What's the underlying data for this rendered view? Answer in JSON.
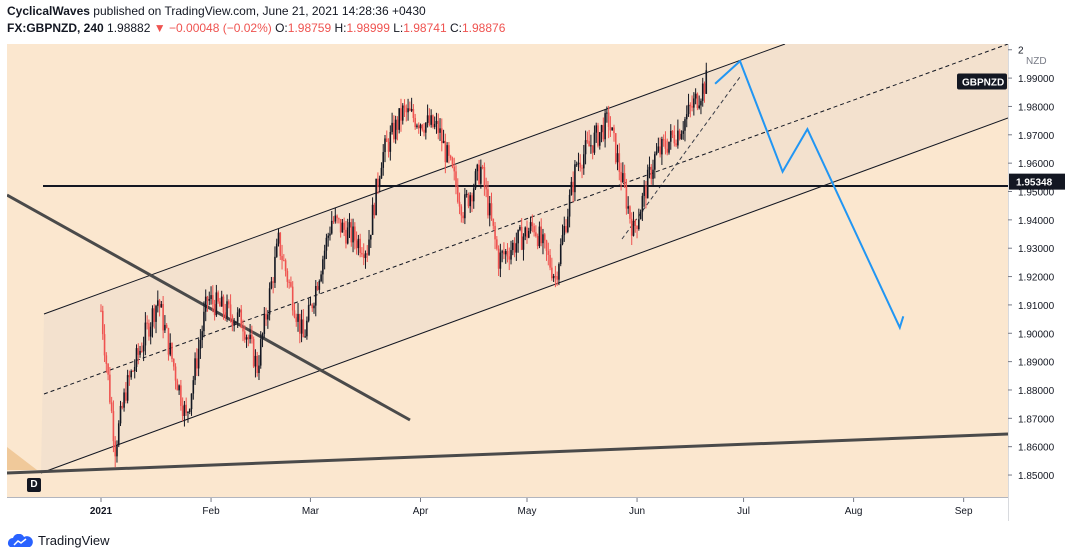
{
  "header": {
    "publisher": "CyclicalWaves",
    "published_text": "published on TradingView.com, June 21, 2021 14:28:36 +0430",
    "symbol": "FX:GBPNZD, 240",
    "last": "1.98882",
    "change_arrow": "▼",
    "change": "−0.00048 (−0.02%)",
    "o_label": "O:",
    "o": "1.98759",
    "h_label": "H:",
    "h": "1.98999",
    "l_label": "L:",
    "l": "1.98741",
    "c_label": "C:",
    "c": "1.98876"
  },
  "footer": {
    "brand": "TradingView"
  },
  "badge_d": "D",
  "colors": {
    "background": "#fbe7cf",
    "channel_fill": "#f2e0cd",
    "up": "#131722",
    "down": "#ef5350",
    "projection": "#2196f3",
    "trendline": "#363a45"
  },
  "chart_data": {
    "type": "candlestick",
    "symbol": "GBPNZD",
    "currency_label": "NZD",
    "ylim": [
      1.845,
      2.0
    ],
    "yticks": [
      "2",
      "1.99000",
      "1.98000",
      "1.97000",
      "1.96000",
      "1.95000",
      "1.94000",
      "1.93000",
      "1.92000",
      "1.91000",
      "1.90000",
      "1.89000",
      "1.88000",
      "1.87000",
      "1.86000",
      "1.85000"
    ],
    "xticks": [
      "2021",
      "Feb",
      "Mar",
      "Apr",
      "May",
      "Jun",
      "Jul",
      "Aug",
      "Sep"
    ],
    "horizontal_level": "1.95348",
    "symbol_tag": "GBPNZD",
    "swing_path": [
      [
        "2021-01-01",
        1.908
      ],
      [
        "2021-01-05",
        1.86
      ],
      [
        "2021-01-08",
        1.88
      ],
      [
        "2021-01-17",
        1.912
      ],
      [
        "2021-01-25",
        1.87
      ],
      [
        "2021-01-31",
        1.912
      ],
      [
        "2021-02-10",
        1.904
      ],
      [
        "2021-02-14",
        1.888
      ],
      [
        "2021-02-20",
        1.932
      ],
      [
        "2021-02-27",
        1.898
      ],
      [
        "2021-03-07",
        1.94
      ],
      [
        "2021-03-17",
        1.93
      ],
      [
        "2021-03-21",
        1.962
      ],
      [
        "2021-03-27",
        1.978
      ],
      [
        "2021-04-06",
        1.972
      ],
      [
        "2021-04-13",
        1.944
      ],
      [
        "2021-04-18",
        1.958
      ],
      [
        "2021-04-23",
        1.926
      ],
      [
        "2021-05-03",
        1.938
      ],
      [
        "2021-05-09",
        1.92
      ],
      [
        "2021-05-15",
        1.96
      ],
      [
        "2021-05-24",
        1.975
      ],
      [
        "2021-05-31",
        1.936
      ],
      [
        "2021-06-06",
        1.962
      ],
      [
        "2021-06-13",
        1.972
      ],
      [
        "2021-06-21",
        1.99
      ]
    ],
    "projection": [
      [
        "2021-06-23",
        1.988
      ],
      [
        "2021-06-30",
        1.996
      ],
      [
        "2021-07-12",
        1.957
      ],
      [
        "2021-07-19",
        1.972
      ],
      [
        "2021-08-14",
        1.902
      ],
      [
        "2021-08-15",
        1.906
      ]
    ]
  }
}
